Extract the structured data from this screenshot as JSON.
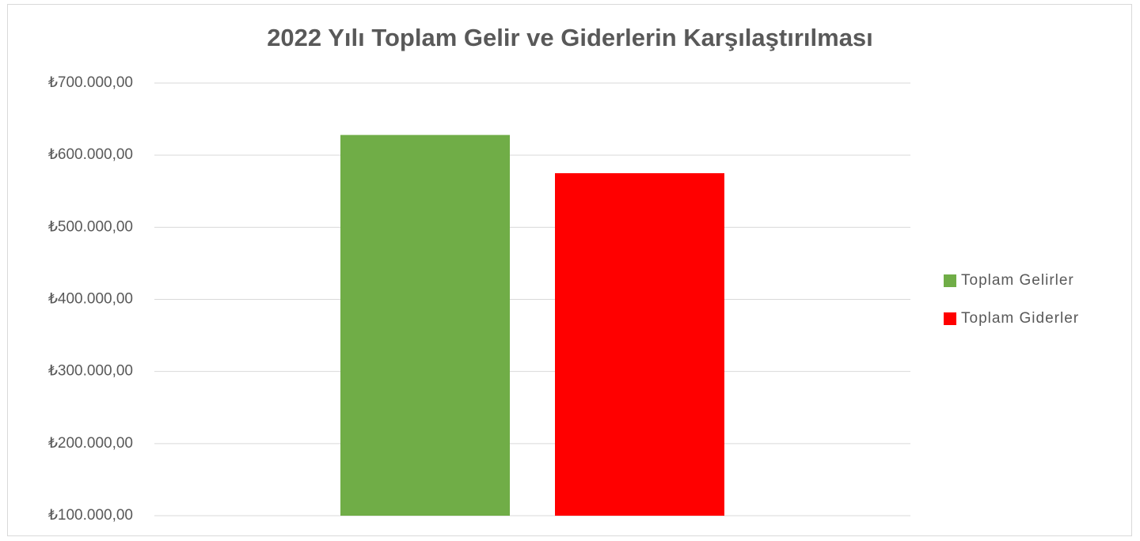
{
  "chart_data": {
    "type": "bar",
    "title": "2022 Yılı Toplam Gelir ve Giderlerin Karşılaştırılması",
    "categories": [
      null
    ],
    "series": [
      {
        "name": "Toplam Gelirler",
        "color": "#70ad47",
        "values": [
          628000
        ]
      },
      {
        "name": "Toplam Giderler",
        "color": "#ff0000",
        "values": [
          575000
        ]
      }
    ],
    "ylim": [
      100000,
      700000
    ],
    "yticks": [
      {
        "value": 100000,
        "label": "₺100.000,00"
      },
      {
        "value": 200000,
        "label": "₺200.000,00"
      },
      {
        "value": 300000,
        "label": "₺300.000,00"
      },
      {
        "value": 400000,
        "label": "₺400.000,00"
      },
      {
        "value": 500000,
        "label": "₺500.000,00"
      },
      {
        "value": 600000,
        "label": "₺600.000,00"
      },
      {
        "value": 700000,
        "label": "₺700.000,00"
      }
    ],
    "grid": true,
    "legend": "right"
  }
}
